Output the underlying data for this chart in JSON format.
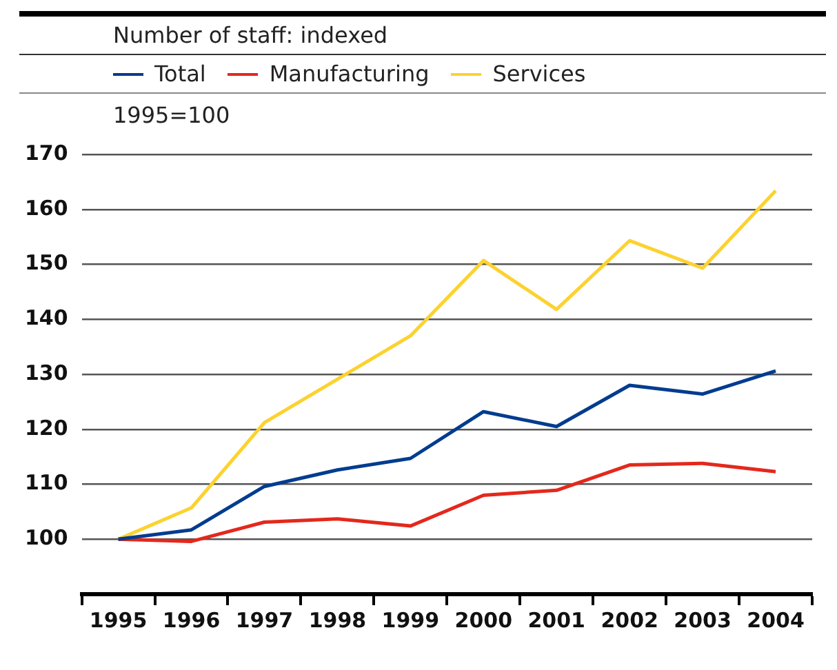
{
  "chart_data": {
    "type": "line",
    "title": "Number of staff: indexed",
    "subtitle": "1995=100",
    "categories": [
      "1995",
      "1996",
      "1997",
      "1998",
      "1999",
      "2000",
      "2001",
      "2002",
      "2003",
      "2004"
    ],
    "series": [
      {
        "name": "Total",
        "color": "#003c8f",
        "values": [
          100,
          101.7,
          109.6,
          112.6,
          114.7,
          123.2,
          120.5,
          128,
          126.4,
          130.6
        ]
      },
      {
        "name": "Manufacturing",
        "color": "#e4281c",
        "values": [
          100,
          99.6,
          103.1,
          103.7,
          102.4,
          108,
          108.9,
          113.5,
          113.8,
          112.3
        ]
      },
      {
        "name": "Services",
        "color": "#fcd22f",
        "values": [
          100,
          105.7,
          121.2,
          129.1,
          137,
          150.7,
          141.8,
          154.3,
          149.3,
          163.4
        ]
      }
    ],
    "ylim": [
      90,
      170
    ],
    "yticks": [
      100,
      110,
      120,
      130,
      140,
      150,
      160,
      170
    ],
    "grid": "y",
    "legend": "top left",
    "marker": "none",
    "line_style": "solid"
  }
}
